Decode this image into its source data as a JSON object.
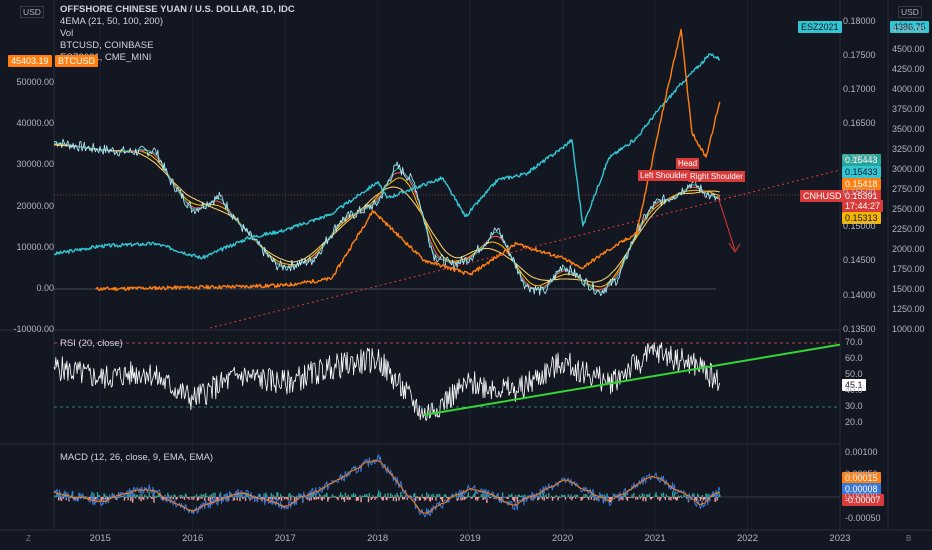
{
  "header": {
    "title": "OFFSHORE CHINESE YUAN / U.S. DOLLAR, 1D, IDC",
    "lines": [
      "4EMA (21, 50, 100, 200)",
      "Vol",
      "BTCUSD, COINBASE",
      "ESZ2021, CME_MINI"
    ],
    "left_currency": "USD",
    "right_currency": "USD"
  },
  "tags": {
    "btc_price": "45403.19",
    "btc_label": "BTCUSD",
    "es_label": "ESZ2021",
    "es_price": "4386.75",
    "cnh_label": "CNHUSD",
    "cnh_price": "0.15391",
    "countdown": "17:44:27",
    "ema_values": [
      "0.15443",
      "0.15433",
      "0.15418",
      "0.15313"
    ],
    "rsi_value": "45.1",
    "macd_values": [
      "0.00015",
      "0.00008",
      "-0.00007"
    ]
  },
  "annotations": {
    "head": "Head",
    "left_shoulder": "Left Shoulder",
    "right_shoulder": "Right Shoulder"
  },
  "axes": {
    "left_ticks": [
      "50000.00",
      "40000.00",
      "30000.00",
      "20000.00",
      "10000.00",
      "0.00",
      "-10000.00"
    ],
    "right_price_ticks": [
      "0.18000",
      "0.17500",
      "0.17000",
      "0.16500",
      "0.16000",
      "0.15500",
      "0.15000",
      "0.14500",
      "0.14000",
      "0.13500"
    ],
    "right_es_ticks": [
      "4750.00",
      "4500.00",
      "4250.00",
      "4000.00",
      "3750.00",
      "3500.00",
      "3250.00",
      "3000.00",
      "2750.00",
      "2500.00",
      "2250.00",
      "2000.00",
      "1750.00",
      "1500.00",
      "1250.00",
      "1000.00"
    ],
    "rsi_ticks": [
      "70.0",
      "60.0",
      "50.0",
      "40.0",
      "30.0",
      "20.0"
    ],
    "macd_ticks": [
      "0.00100",
      "0.00050",
      "0.00000",
      "-0.00050"
    ],
    "x_ticks": [
      "2015",
      "2016",
      "2017",
      "2018",
      "2019",
      "2020",
      "2021",
      "2022",
      "2023"
    ],
    "corner_left": "Z",
    "corner_right": "B"
  },
  "indicators": {
    "rsi_label": "RSI (20, close)",
    "macd_label": "MACD (12, 26, close, 9, EMA, EMA)"
  },
  "colors": {
    "background": "#131722",
    "price": "#b7f0ff",
    "ema21": "#26a69a",
    "ema50": "#ef5350",
    "ema100": "#f2b600",
    "ema200": "#f5c86a",
    "btc": "#ff7f11",
    "es": "#32c5d2",
    "rsi": "#ffffff",
    "trend": "#33d633",
    "macd": "#3a78d8",
    "signal": "#ff7f11"
  },
  "chart_data": [
    {
      "type": "line",
      "title": "OFFSHORE CHINESE YUAN / U.S. DOLLAR, 1D, IDC",
      "x_range": [
        2014.5,
        2023.0
      ],
      "ylim": [
        0.135,
        0.182
      ],
      "series": [
        {
          "name": "CNHUSD",
          "x": [
            2014.5,
            2014.9,
            2015.3,
            2015.6,
            2015.75,
            2016.0,
            2016.3,
            2016.5,
            2016.9,
            2017.0,
            2017.3,
            2017.6,
            2018.0,
            2018.2,
            2018.4,
            2018.6,
            2018.8,
            2019.0,
            2019.3,
            2019.6,
            2019.8,
            2020.0,
            2020.2,
            2020.4,
            2020.6,
            2020.8,
            2021.0,
            2021.2,
            2021.4,
            2021.6,
            2021.7
          ],
          "y": [
            0.1625,
            0.1615,
            0.161,
            0.1612,
            0.157,
            0.1525,
            0.1545,
            0.1505,
            0.1445,
            0.1442,
            0.1452,
            0.151,
            0.1535,
            0.159,
            0.1565,
            0.146,
            0.1445,
            0.1455,
            0.1498,
            0.1415,
            0.1405,
            0.1445,
            0.1425,
            0.1405,
            0.1425,
            0.1495,
            0.1535,
            0.1545,
            0.1565,
            0.1545,
            0.15391
          ]
        },
        {
          "name": "ESZ2021",
          "x": [
            2014.5,
            2015.0,
            2015.6,
            2016.1,
            2016.6,
            2017.0,
            2017.5,
            2018.0,
            2018.1,
            2018.7,
            2018.95,
            2019.3,
            2019.6,
            2020.0,
            2020.1,
            2020.22,
            2020.5,
            2020.8,
            2021.0,
            2021.3,
            2021.6,
            2021.7
          ],
          "y": [
            1950,
            2050,
            2080,
            1900,
            2150,
            2250,
            2450,
            2850,
            2650,
            2900,
            2420,
            2880,
            2950,
            3280,
            3380,
            2300,
            3150,
            3400,
            3700,
            4100,
            4450,
            4386.75
          ]
        },
        {
          "name": "BTCUSD",
          "x": [
            2014.95,
            2015.5,
            2016.0,
            2016.5,
            2017.0,
            2017.5,
            2017.95,
            2018.5,
            2019.0,
            2019.5,
            2020.0,
            2020.2,
            2020.5,
            2020.8,
            2020.95,
            2021.1,
            2021.28,
            2021.4,
            2021.55,
            2021.7
          ],
          "y": [
            0,
            200,
            400,
            600,
            900,
            2500,
            19000,
            7000,
            3500,
            11000,
            7500,
            5000,
            9500,
            13500,
            29000,
            45000,
            63000,
            38000,
            32000,
            45403.19
          ]
        }
      ],
      "annotations": [
        "Left Shoulder",
        "Head",
        "Right Shoulder"
      ]
    },
    {
      "type": "line",
      "title": "RSI (20, close)",
      "ylim": [
        20,
        70
      ],
      "series": [
        {
          "name": "RSI",
          "x": [
            2014.5,
            2015.0,
            2015.5,
            2016.0,
            2016.5,
            2017.0,
            2017.5,
            2018.0,
            2018.5,
            2019.0,
            2019.5,
            2020.0,
            2020.5,
            2021.0,
            2021.5,
            2021.7
          ],
          "y": [
            55,
            48,
            52,
            35,
            50,
            45,
            55,
            60,
            25,
            45,
            40,
            58,
            45,
            65,
            55,
            45.1
          ]
        },
        {
          "name": "Trend",
          "x": [
            2018.5,
            2023.0
          ],
          "y": [
            25,
            69
          ]
        }
      ],
      "levels": [
        70,
        30
      ]
    },
    {
      "type": "line",
      "title": "MACD (12, 26, close, 9, EMA, EMA)",
      "ylim": [
        -0.0006,
        0.0011
      ],
      "series": [
        {
          "name": "MACD",
          "x": [
            2014.5,
            2015.0,
            2015.5,
            2016.0,
            2016.5,
            2017.0,
            2017.5,
            2018.0,
            2018.5,
            2019.0,
            2019.5,
            2020.0,
            2020.5,
            2021.0,
            2021.5,
            2021.7
          ],
          "y": [
            0.0001,
            -0.0001,
            0.0002,
            -0.0003,
            0.0001,
            -0.0002,
            0.0003,
            0.0009,
            -0.0004,
            0.0002,
            -0.0002,
            0.0004,
            -0.0001,
            0.0005,
            -0.0002,
            0.00015
          ]
        },
        {
          "name": "Signal",
          "x": [
            2014.5,
            2015.0,
            2015.5,
            2016.0,
            2016.5,
            2017.0,
            2017.5,
            2018.0,
            2018.5,
            2019.0,
            2019.5,
            2020.0,
            2020.5,
            2021.0,
            2021.5,
            2021.7
          ],
          "y": [
            0.0,
            -5e-05,
            0.0001,
            -0.0002,
            0.0,
            -0.0001,
            0.0002,
            0.0007,
            -0.0002,
            0.0001,
            -0.0001,
            0.0003,
            0.0,
            0.0004,
            -0.0001,
            8e-05
          ]
        }
      ]
    }
  ]
}
